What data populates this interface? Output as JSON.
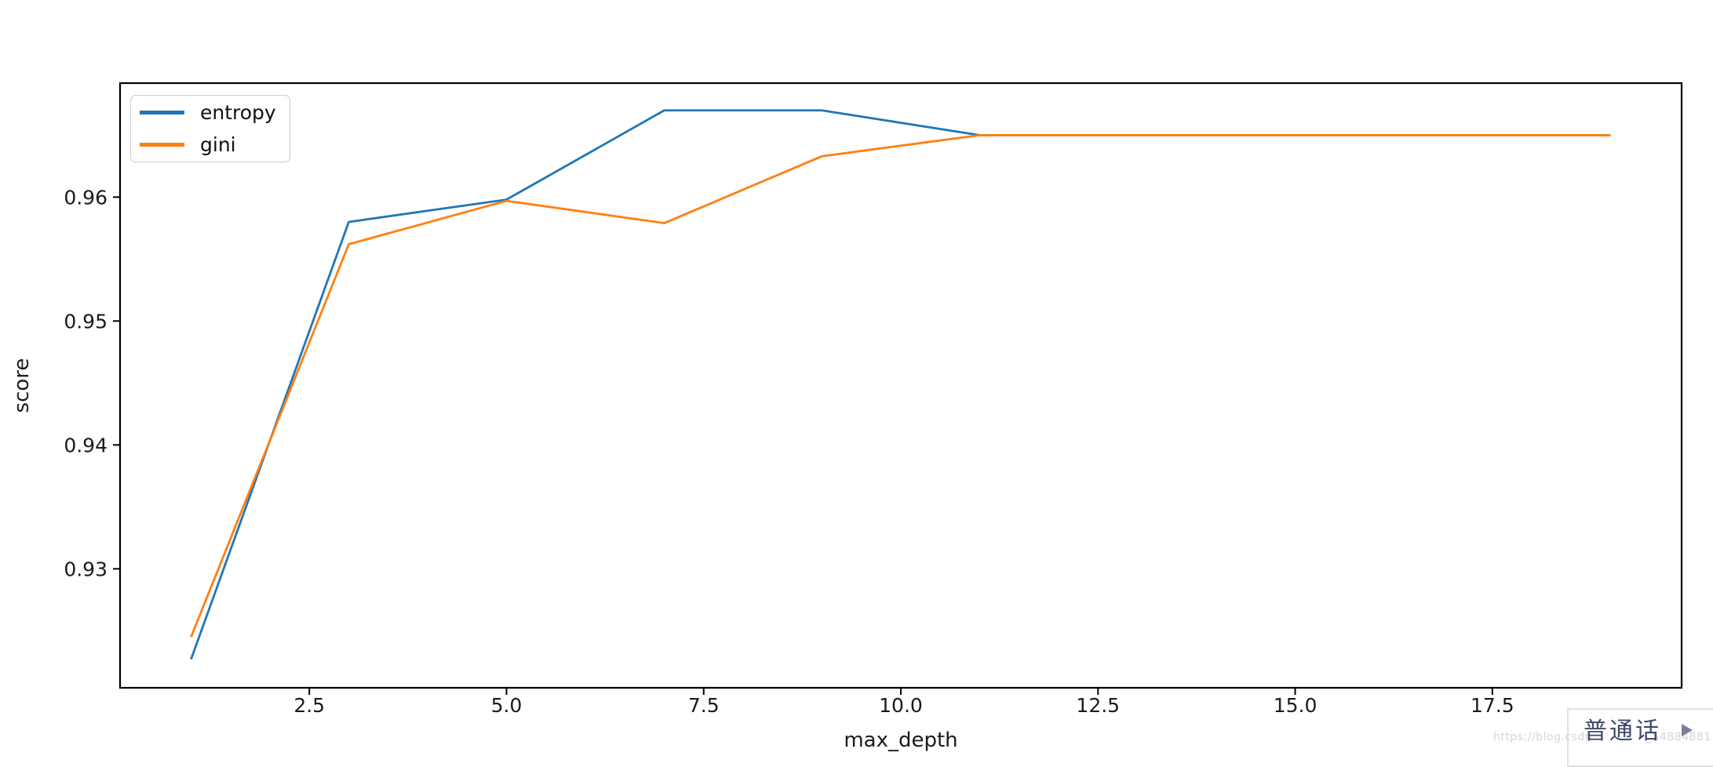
{
  "chart_data": {
    "type": "line",
    "title": "",
    "xlabel": "max_depth",
    "ylabel": "score",
    "x": [
      1,
      3,
      5,
      7,
      9,
      11,
      13,
      15,
      17,
      19
    ],
    "series": [
      {
        "name": "entropy",
        "color": "#1f77b4",
        "values": [
          0.9227,
          0.958,
          0.9598,
          0.967,
          0.967,
          0.965,
          0.965,
          0.965,
          0.965,
          0.965
        ]
      },
      {
        "name": "gini",
        "color": "#ff7f0e",
        "values": [
          0.9245,
          0.9562,
          0.9597,
          0.9579,
          0.9633,
          0.965,
          0.965,
          0.965,
          0.965,
          0.965
        ]
      }
    ],
    "xlim": [
      0.1,
      19.9
    ],
    "ylim": [
      0.9204,
      0.9692
    ],
    "x_ticks": {
      "values": [
        2.5,
        5.0,
        7.5,
        10.0,
        12.5,
        15.0,
        17.5
      ],
      "labels": [
        "2.5",
        "5.0",
        "7.5",
        "10.0",
        "12.5",
        "15.0",
        "17.5"
      ]
    },
    "y_ticks": {
      "values": [
        0.93,
        0.94,
        0.95,
        0.96
      ],
      "labels": [
        "0.93",
        "0.94",
        "0.95",
        "0.96"
      ]
    },
    "grid": false,
    "legend_position": "upper left",
    "axis_color": "#000000",
    "tick_label_color": "#1a1a1a"
  },
  "overlay": {
    "language_label": "普通话",
    "play_icon": "right-triangle"
  },
  "watermark": {
    "fragment_left": "https://blog.csdn.",
    "fragment_right": "_54884881"
  },
  "colors": {
    "background": "#ffffff",
    "entropy_line": "#1f77b4",
    "gini_line": "#ff7f0e",
    "watermark_text": "#d9d3d4",
    "overlay_text": "#3e4a68",
    "overlay_border": "#dde1e9",
    "legend_border": "#cccccc"
  }
}
